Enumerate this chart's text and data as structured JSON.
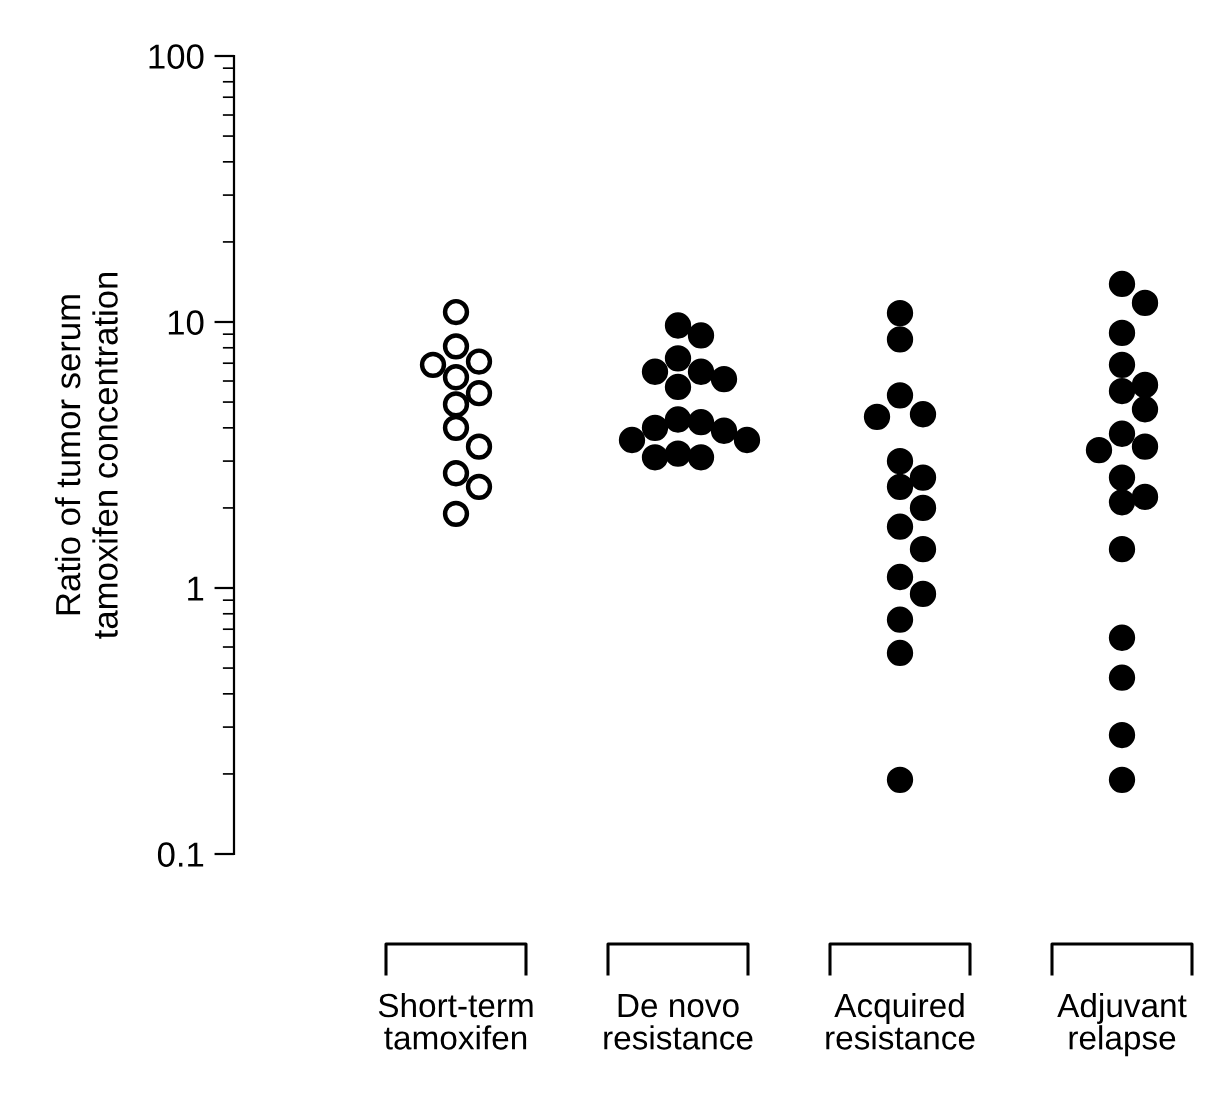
{
  "chart_data": {
    "type": "scatter",
    "ylabel": "Ratio of tumor serum\ntamoxifen concentration",
    "categories": [
      "Short-term\ntamoxifen",
      "De novo\nresistance",
      "Acquired\nresistance",
      "Adjuvant\nrelapse"
    ],
    "series": [
      {
        "color": "#ffffff",
        "x": [
          "Short-term\ntamoxifen",
          "Short-term\ntamoxifen",
          "Short-term\ntamoxifen",
          "Short-term\ntamoxifen",
          "Short-term\ntamoxifen",
          "Short-term\ntamoxifen",
          "Short-term\ntamoxifen",
          "Short-term\ntamoxifen",
          "Short-term\ntamoxifen",
          "Short-term\ntamoxifen",
          "Short-term\ntamoxifen",
          "Short-term\ntamoxifen"
        ],
        "values": [
          10.9,
          8.1,
          7.1,
          6.9,
          6.2,
          5.4,
          4.9,
          4.0,
          3.4,
          2.7,
          2.4,
          1.9
        ]
      },
      {
        "color": "#000000",
        "x": [
          "De novo\nresistance",
          "De novo\nresistance",
          "De novo\nresistance",
          "De novo\nresistance",
          "De novo\nresistance",
          "De novo\nresistance",
          "De novo\nresistance",
          "De novo\nresistance",
          "De novo\nresistance",
          "De novo\nresistance",
          "De novo\nresistance",
          "De novo\nresistance",
          "De novo\nresistance",
          "De novo\nresistance",
          "De novo\nresistance",
          "De novo\nresistance"
        ],
        "values": [
          9.7,
          8.9,
          7.3,
          6.5,
          6.5,
          6.1,
          5.7,
          4.3,
          4.2,
          4.0,
          3.9,
          3.6,
          3.6,
          3.2,
          3.1,
          3.1
        ]
      },
      {
        "color": "#000000",
        "x": [
          "Acquired\nresistance",
          "Acquired\nresistance",
          "Acquired\nresistance",
          "Acquired\nresistance",
          "Acquired\nresistance",
          "Acquired\nresistance",
          "Acquired\nresistance",
          "Acquired\nresistance",
          "Acquired\nresistance",
          "Acquired\nresistance",
          "Acquired\nresistance",
          "Acquired\nresistance",
          "Acquired\nresistance",
          "Acquired\nresistance",
          "Acquired\nresistance",
          "Acquired\nresistance"
        ],
        "values": [
          10.8,
          8.6,
          5.3,
          4.5,
          4.4,
          3.0,
          2.6,
          2.4,
          2.0,
          1.7,
          1.4,
          1.1,
          0.95,
          0.76,
          0.57,
          0.19
        ]
      },
      {
        "color": "#000000",
        "x": [
          "Adjuvant\nrelapse",
          "Adjuvant\nrelapse",
          "Adjuvant\nrelapse",
          "Adjuvant\nrelapse",
          "Adjuvant\nrelapse",
          "Adjuvant\nrelapse",
          "Adjuvant\nrelapse",
          "Adjuvant\nrelapse",
          "Adjuvant\nrelapse",
          "Adjuvant\nrelapse",
          "Adjuvant\nrelapse",
          "Adjuvant\nrelapse",
          "Adjuvant\nrelapse",
          "Adjuvant\nrelapse",
          "Adjuvant\nrelapse",
          "Adjuvant\nrelapse",
          "Adjuvant\nrelapse",
          "Adjuvant\nrelapse"
        ],
        "values": [
          13.9,
          11.8,
          9.1,
          6.9,
          5.8,
          5.5,
          4.7,
          3.8,
          3.4,
          3.3,
          2.6,
          2.2,
          2.1,
          1.4,
          0.65,
          0.46,
          0.28,
          0.19
        ]
      }
    ],
    "log": true,
    "ylim": [
      0.1,
      100
    ],
    "yticks": [
      0.1,
      1,
      10,
      100
    ],
    "grid": false,
    "marker": "circle"
  }
}
